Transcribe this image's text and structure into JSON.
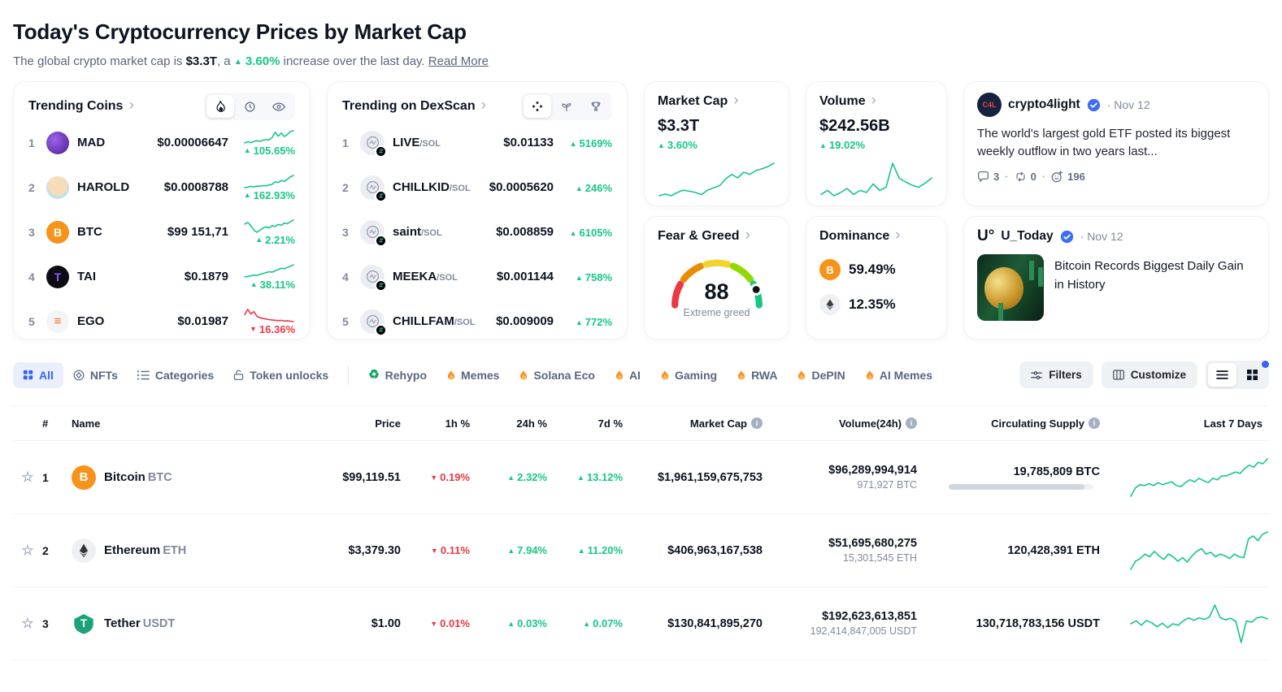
{
  "colors": {
    "green": "#16c784",
    "red": "#ea3943",
    "blue": "#3861fb",
    "btc_orange": "#f7931a"
  },
  "icons": {
    "up": "▲",
    "down": "▼",
    "chevron": "›",
    "star": "☆",
    "info": "i",
    "dot": "·",
    "recycle": "♻",
    "ego": "≡",
    "btc": "B",
    "tether": "T"
  },
  "header": {
    "title": "Today's Cryptocurrency Prices by Market Cap",
    "sub_prefix": "The global crypto market cap is ",
    "market_cap": "$3.3T",
    "sub_mid": ", a ",
    "change": "3.60%",
    "sub_suffix": " increase over the last day. ",
    "read_more": "Read More"
  },
  "trending_coins": {
    "title": "Trending Coins",
    "items": [
      {
        "rank": "1",
        "symbol": "MAD",
        "price": "$0.00006647",
        "change": "105.65%",
        "dir": "up"
      },
      {
        "rank": "2",
        "symbol": "HAROLD",
        "price": "$0.0008788",
        "change": "162.93%",
        "dir": "up"
      },
      {
        "rank": "3",
        "symbol": "BTC",
        "price": "$99 151,71",
        "change": "2.21%",
        "dir": "up"
      },
      {
        "rank": "4",
        "symbol": "TAI",
        "price": "$0.1879",
        "change": "38.11%",
        "dir": "up"
      },
      {
        "rank": "5",
        "symbol": "EGO",
        "price": "$0.01987",
        "change": "16.36%",
        "dir": "down"
      }
    ]
  },
  "dexscan": {
    "title": "Trending on DexScan",
    "items": [
      {
        "rank": "1",
        "symbol": "LIVE",
        "pair": "/SOL",
        "price": "$0.01133",
        "change": "5169%",
        "dir": "up"
      },
      {
        "rank": "2",
        "symbol": "CHILLKID",
        "pair": "/SOL",
        "price": "$0.0005620",
        "change": "246%",
        "dir": "up"
      },
      {
        "rank": "3",
        "symbol": "saint",
        "pair": "/SOL",
        "price": "$0.008859",
        "change": "6105%",
        "dir": "up"
      },
      {
        "rank": "4",
        "symbol": "MEEKA",
        "pair": "/SOL",
        "price": "$0.001144",
        "change": "758%",
        "dir": "up"
      },
      {
        "rank": "5",
        "symbol": "CHILLFAM",
        "pair": "/SOL",
        "price": "$0.009009",
        "change": "772%",
        "dir": "up"
      }
    ]
  },
  "market_cap_card": {
    "title": "Market Cap",
    "value": "$3.3T",
    "change": "3.60%"
  },
  "volume_card": {
    "title": "Volume",
    "value": "$242.56B",
    "change": "19.02%"
  },
  "fear_greed": {
    "title": "Fear & Greed",
    "value": "88",
    "label": "Extreme greed"
  },
  "dominance": {
    "title": "Dominance",
    "btc_value": "59.49%",
    "eth_value": "12.35%"
  },
  "tweet1": {
    "author": "crypto4light",
    "date": "· Nov 12",
    "text": "The world's largest gold ETF posted its biggest weekly outflow in two years last...",
    "comments": "3",
    "retweets": "0",
    "reactions": "196"
  },
  "tweet2": {
    "author": "U_Today",
    "logo": "U°",
    "date": "· Nov 12",
    "headline": "Bitcoin Records Biggest Daily Gain in History"
  },
  "toolbar": {
    "tabs": [
      {
        "label": "All"
      },
      {
        "label": "NFTs"
      },
      {
        "label": "Categories"
      },
      {
        "label": "Token unlocks"
      }
    ],
    "chips": [
      {
        "label": "Rehypo"
      },
      {
        "label": "Memes"
      },
      {
        "label": "Solana Eco"
      },
      {
        "label": "AI"
      },
      {
        "label": "Gaming"
      },
      {
        "label": "RWA"
      },
      {
        "label": "DePIN"
      },
      {
        "label": "AI Memes"
      }
    ],
    "filters_label": "Filters",
    "customize_label": "Customize"
  },
  "table": {
    "headers": {
      "rank": "#",
      "name": "Name",
      "price": "Price",
      "h1": "1h %",
      "h24": "24h %",
      "d7": "7d %",
      "market_cap": "Market Cap",
      "volume": "Volume(24h)",
      "supply": "Circulating Supply",
      "last7": "Last 7 Days"
    },
    "rows": [
      {
        "rank": "1",
        "name": "Bitcoin",
        "symbol": "BTC",
        "price": "$99,119.51",
        "h1": "0.19%",
        "h24": "2.32%",
        "d7": "13.12%",
        "market_cap": "$1,961,159,675,753",
        "volume": "$96,289,994,914",
        "volume_coin": "971,927 BTC",
        "supply": "19,785,809 BTC",
        "supply_pct": 94
      },
      {
        "rank": "2",
        "name": "Ethereum",
        "symbol": "ETH",
        "price": "$3,379.30",
        "h1": "0.11%",
        "h24": "7.94%",
        "d7": "11.20%",
        "market_cap": "$406,963,167,538",
        "volume": "$51,695,680,275",
        "volume_coin": "15,301,545 ETH",
        "supply": "120,428,391 ETH"
      },
      {
        "rank": "3",
        "name": "Tether",
        "symbol": "USDT",
        "price": "$1.00",
        "h1": "0.01%",
        "h24": "0.03%",
        "d7": "0.07%",
        "market_cap": "$130,841,895,270",
        "volume": "$192,623,613,851",
        "volume_coin": "192,414,847,005 USDT",
        "supply": "130,718,783,156 USDT"
      }
    ]
  },
  "sparklines": {
    "mad": [
      1,
      1.08,
      1.02,
      1.1,
      1.15,
      1.1,
      1.18,
      1.22,
      1.2,
      1.35,
      1.7,
      1.45,
      1.65,
      1.42,
      1.55,
      1.75,
      1.8
    ],
    "harold": [
      1,
      1.04,
      1.1,
      1.06,
      1.12,
      1.1,
      1.16,
      1.14,
      1.2,
      1.26,
      1.45,
      1.4,
      1.55,
      1.48,
      1.65,
      1.85,
      1.95
    ],
    "btc_t": [
      1.25,
      1.3,
      1.2,
      1.05,
      0.98,
      1.05,
      1.12,
      1.16,
      1.12,
      1.2,
      1.17,
      1.24,
      1.21,
      1.28,
      1.26,
      1.33,
      1.38
    ],
    "tai": [
      1,
      1.03,
      1.06,
      1.1,
      1.08,
      1.14,
      1.18,
      1.24,
      1.28,
      1.26,
      1.34,
      1.4,
      1.48,
      1.44,
      1.52,
      1.58,
      1.66
    ],
    "ego": [
      1.55,
      1.95,
      1.6,
      1.78,
      1.42,
      1.3,
      1.26,
      1.2,
      1.16,
      1.13,
      1.1,
      1.08,
      1.1,
      1.05,
      1.07,
      1.03,
      1.0
    ],
    "market_cap": [
      1,
      1.03,
      1.0,
      1.06,
      1.1,
      1.08,
      1.06,
      1.02,
      1.1,
      1.14,
      1.18,
      1.3,
      1.38,
      1.32,
      1.42,
      1.38,
      1.45,
      1.48,
      1.52,
      1.58
    ],
    "volume": [
      1,
      1.12,
      0.96,
      1.06,
      1.18,
      1.0,
      1.12,
      1.06,
      1.32,
      1.12,
      1.22,
      1.95,
      1.5,
      1.38,
      1.28,
      1.22,
      1.34,
      1.5
    ],
    "btc": [
      0.88,
      1.05,
      1.12,
      1.1,
      1.14,
      1.1,
      1.16,
      1.12,
      1.15,
      1.18,
      1.1,
      1.08,
      1.16,
      1.22,
      1.18,
      1.25,
      1.2,
      1.16,
      1.25,
      1.22,
      1.3,
      1.3,
      1.34,
      1.38,
      1.35,
      1.45,
      1.52,
      1.48,
      1.58,
      1.55,
      1.65
    ],
    "eth": [
      0.82,
      1.0,
      1.06,
      1.16,
      1.1,
      1.22,
      1.12,
      1.04,
      1.16,
      1.1,
      1.0,
      1.08,
      0.98,
      1.12,
      1.22,
      1.28,
      1.16,
      1.2,
      1.1,
      1.16,
      1.12,
      1.06,
      1.16,
      1.1,
      1.08,
      1.5,
      1.56,
      1.46,
      1.6,
      1.65
    ],
    "usdt": [
      1,
      1.06,
      0.97,
      1.07,
      1.02,
      0.94,
      1.01,
      0.92,
      1.0,
      0.97,
      1.06,
      1.12,
      1.07,
      1.12,
      1.09,
      1.14,
      1.38,
      1.13,
      1.08,
      1.11,
      1.05,
      0.62,
      1.06,
      1.03,
      1.12,
      1.14,
      1.1
    ]
  }
}
